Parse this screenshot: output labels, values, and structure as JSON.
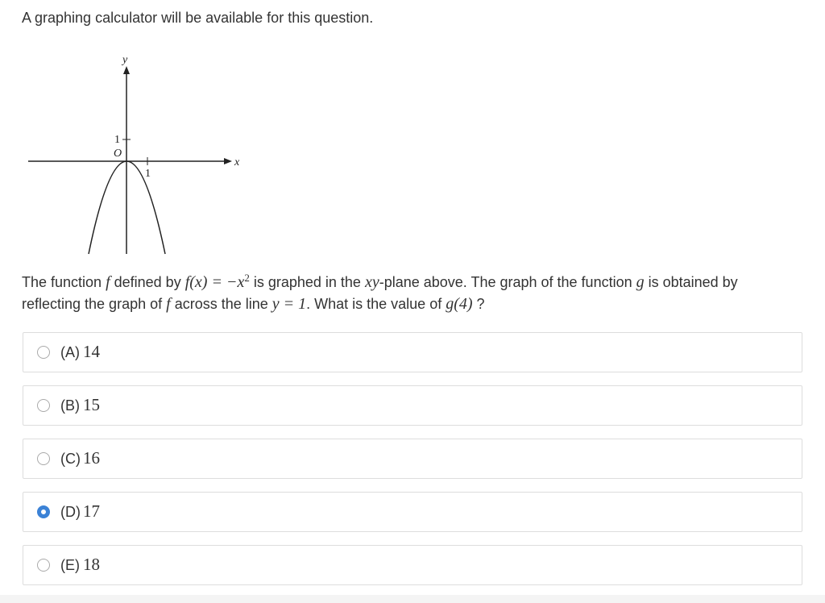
{
  "notice": "A graphing calculator will be available for this question.",
  "graph": {
    "y_axis_label": "y",
    "x_axis_label": "x",
    "y_tick_label": "1",
    "origin_label": "O",
    "x_tick_label": "1"
  },
  "question": {
    "segments": [
      {
        "text": "The function ",
        "style": "text"
      },
      {
        "text": "f",
        "style": "math"
      },
      {
        "text": " defined by ",
        "style": "text"
      },
      {
        "text": "f(x) = −x",
        "style": "math"
      },
      {
        "text": "2",
        "style": "sup"
      },
      {
        "text": " is graphed in the ",
        "style": "text"
      },
      {
        "text": "xy",
        "style": "math"
      },
      {
        "text": "-plane above. The graph of the function ",
        "style": "text"
      },
      {
        "text": "g",
        "style": "math"
      },
      {
        "text": " is obtained by reflecting the graph of ",
        "style": "text"
      },
      {
        "text": "f",
        "style": "math"
      },
      {
        "text": " across the line ",
        "style": "text"
      },
      {
        "text": "y = 1",
        "style": "math"
      },
      {
        "text": ". What is the value of ",
        "style": "text"
      },
      {
        "text": "g(4)",
        "style": "math"
      },
      {
        "text": " ?",
        "style": "text"
      }
    ]
  },
  "options": [
    {
      "letter": "(A)",
      "value": 14,
      "selected": false
    },
    {
      "letter": "(B)",
      "value": 15,
      "selected": false
    },
    {
      "letter": "(C)",
      "value": 16,
      "selected": false
    },
    {
      "letter": "(D)",
      "value": 17,
      "selected": true
    },
    {
      "letter": "(E)",
      "value": 18,
      "selected": false
    }
  ]
}
